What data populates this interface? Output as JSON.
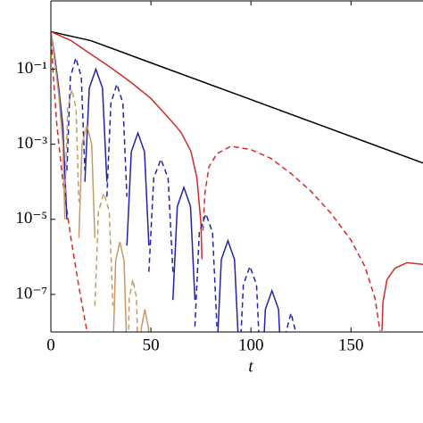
{
  "chart_data": {
    "type": "line",
    "xlabel": "t",
    "xlim": [
      0,
      186
    ],
    "xticks": [
      0,
      50,
      100,
      150
    ],
    "ylim": [
      1e-08,
      6.6
    ],
    "yscale": "log",
    "yticks": [
      {
        "value": 0.1,
        "label": "10⁻¹"
      },
      {
        "value": 0.001,
        "label": "10⁻³"
      },
      {
        "value": 1e-05,
        "label": "10⁻⁵"
      },
      {
        "value": 1e-07,
        "label": "10⁻⁷"
      }
    ],
    "series": [
      {
        "color": "#000000",
        "dash": false,
        "x": [
          0,
          20,
          50,
          100,
          150,
          186
        ],
        "values": [
          1,
          0.575,
          0.148,
          0.0155,
          0.00162,
          0.000316
        ]
      },
      {
        "color": "#d42a2a",
        "dash": false,
        "x": [
          0,
          10,
          20,
          30,
          40,
          50,
          60,
          65,
          70,
          73,
          75,
          75.5,
          null,
          165.5,
          166,
          168,
          172,
          178,
          186
        ],
        "values": [
          1,
          0.58,
          0.25,
          0.11,
          0.045,
          0.0166,
          0.0043,
          0.0021,
          0.00065,
          0.000126,
          8e-06,
          8.7e-07,
          null,
          1.07e-08,
          6.3e-08,
          2.5e-07,
          5e-07,
          7e-07,
          6.3e-07
        ]
      },
      {
        "color": "#d42a2a",
        "dash": true,
        "x": [
          0,
          1,
          3,
          6,
          10,
          14,
          18,
          null,
          76,
          77,
          79,
          83,
          90,
          100,
          110,
          120,
          130,
          140,
          150,
          157,
          162,
          164.5
        ],
        "values": [
          1,
          0.1,
          0.0032,
          0.0001,
          3.2e-06,
          1.6e-07,
          1.07e-08,
          null,
          5e-06,
          5e-05,
          0.00025,
          0.00056,
          0.00089,
          0.00072,
          0.00042,
          0.000166,
          5.6e-05,
          1.45e-05,
          2.8e-06,
          5.5e-07,
          7.9e-08,
          1.07e-08
        ]
      },
      {
        "color": "#2222aa",
        "dash": false,
        "x": [
          0,
          2,
          4,
          6,
          8,
          null,
          17,
          19.2,
          22.5,
          25.8,
          28,
          null,
          38,
          40.2,
          43.5,
          46.8,
          49,
          null,
          61,
          63.2,
          66.5,
          69.8,
          72,
          null,
          83,
          85.2,
          88.5,
          91.8,
          94,
          null,
          105,
          107.2,
          110.5,
          113.8,
          116
        ],
        "values": [
          1,
          0.2,
          0.03,
          0.003,
          1e-05,
          null,
          0.0001,
          0.0316,
          0.1,
          0.0316,
          0.0001,
          null,
          2e-06,
          0.00063,
          0.002,
          0.00063,
          2e-06,
          null,
          7.1e-08,
          2.2e-05,
          7.1e-05,
          2.2e-05,
          7.1e-08,
          null,
          2.7e-09,
          8.5e-07,
          2.7e-06,
          8.5e-07,
          2.7e-09,
          null,
          1.26e-10,
          4e-08,
          1.26e-07,
          4e-08,
          1.26e-10
        ]
      },
      {
        "color": "#2222aa",
        "dash": true,
        "x": [
          8,
          9.8,
          12.5,
          15.2,
          17,
          null,
          28,
          30,
          33,
          36,
          38,
          null,
          49,
          51.4,
          55,
          58.6,
          61,
          null,
          72,
          74.2,
          77.5,
          80.8,
          83,
          null,
          94,
          96.2,
          99.5,
          102.8,
          105,
          null,
          116,
          117.6,
          120,
          122.4,
          124
        ],
        "values": [
          0.0002,
          0.063,
          0.2,
          0.063,
          0.0002,
          null,
          4e-05,
          0.0126,
          0.04,
          0.0126,
          4e-05,
          null,
          4e-07,
          0.000126,
          0.0004,
          0.000126,
          4e-07,
          null,
          1.4e-08,
          4.5e-06,
          1.4e-05,
          4.5e-06,
          1.4e-08,
          null,
          5.6e-10,
          1.8e-07,
          5.6e-07,
          1.8e-07,
          5.6e-10,
          null,
          3.2e-11,
          1e-08,
          3.2e-08,
          1e-08,
          3.2e-11
        ]
      },
      {
        "color": "#c49a6a",
        "dash": false,
        "x": [
          0,
          2,
          4,
          6,
          7,
          null,
          14,
          15.6,
          18,
          20.4,
          22,
          null,
          31,
          32.4,
          34.5,
          36.6,
          38,
          null,
          44,
          45.2,
          47,
          48.8,
          50
        ],
        "values": [
          1,
          0.15,
          0.02,
          0.001,
          1e-05,
          null,
          3.2e-06,
          0.001,
          0.0032,
          0.001,
          3.2e-06,
          null,
          2.5e-09,
          8e-07,
          2.5e-06,
          8e-07,
          2.5e-09,
          null,
          4e-11,
          1.26e-08,
          4e-08,
          1.26e-08,
          4e-11
        ]
      },
      {
        "color": "#c49a6a",
        "dash": true,
        "x": [
          7,
          8.4,
          10.5,
          12.6,
          14,
          null,
          22,
          23.8,
          26.5,
          29.2,
          31,
          null,
          38,
          39.2,
          41,
          42.8,
          44
        ],
        "values": [
          2.9e-05,
          0.009,
          0.029,
          0.009,
          2.9e-05,
          null,
          5e-08,
          1.6e-05,
          5e-05,
          1.6e-05,
          5e-08,
          null,
          2.5e-10,
          8e-08,
          2.5e-07,
          8e-08,
          2.5e-10
        ]
      }
    ]
  }
}
